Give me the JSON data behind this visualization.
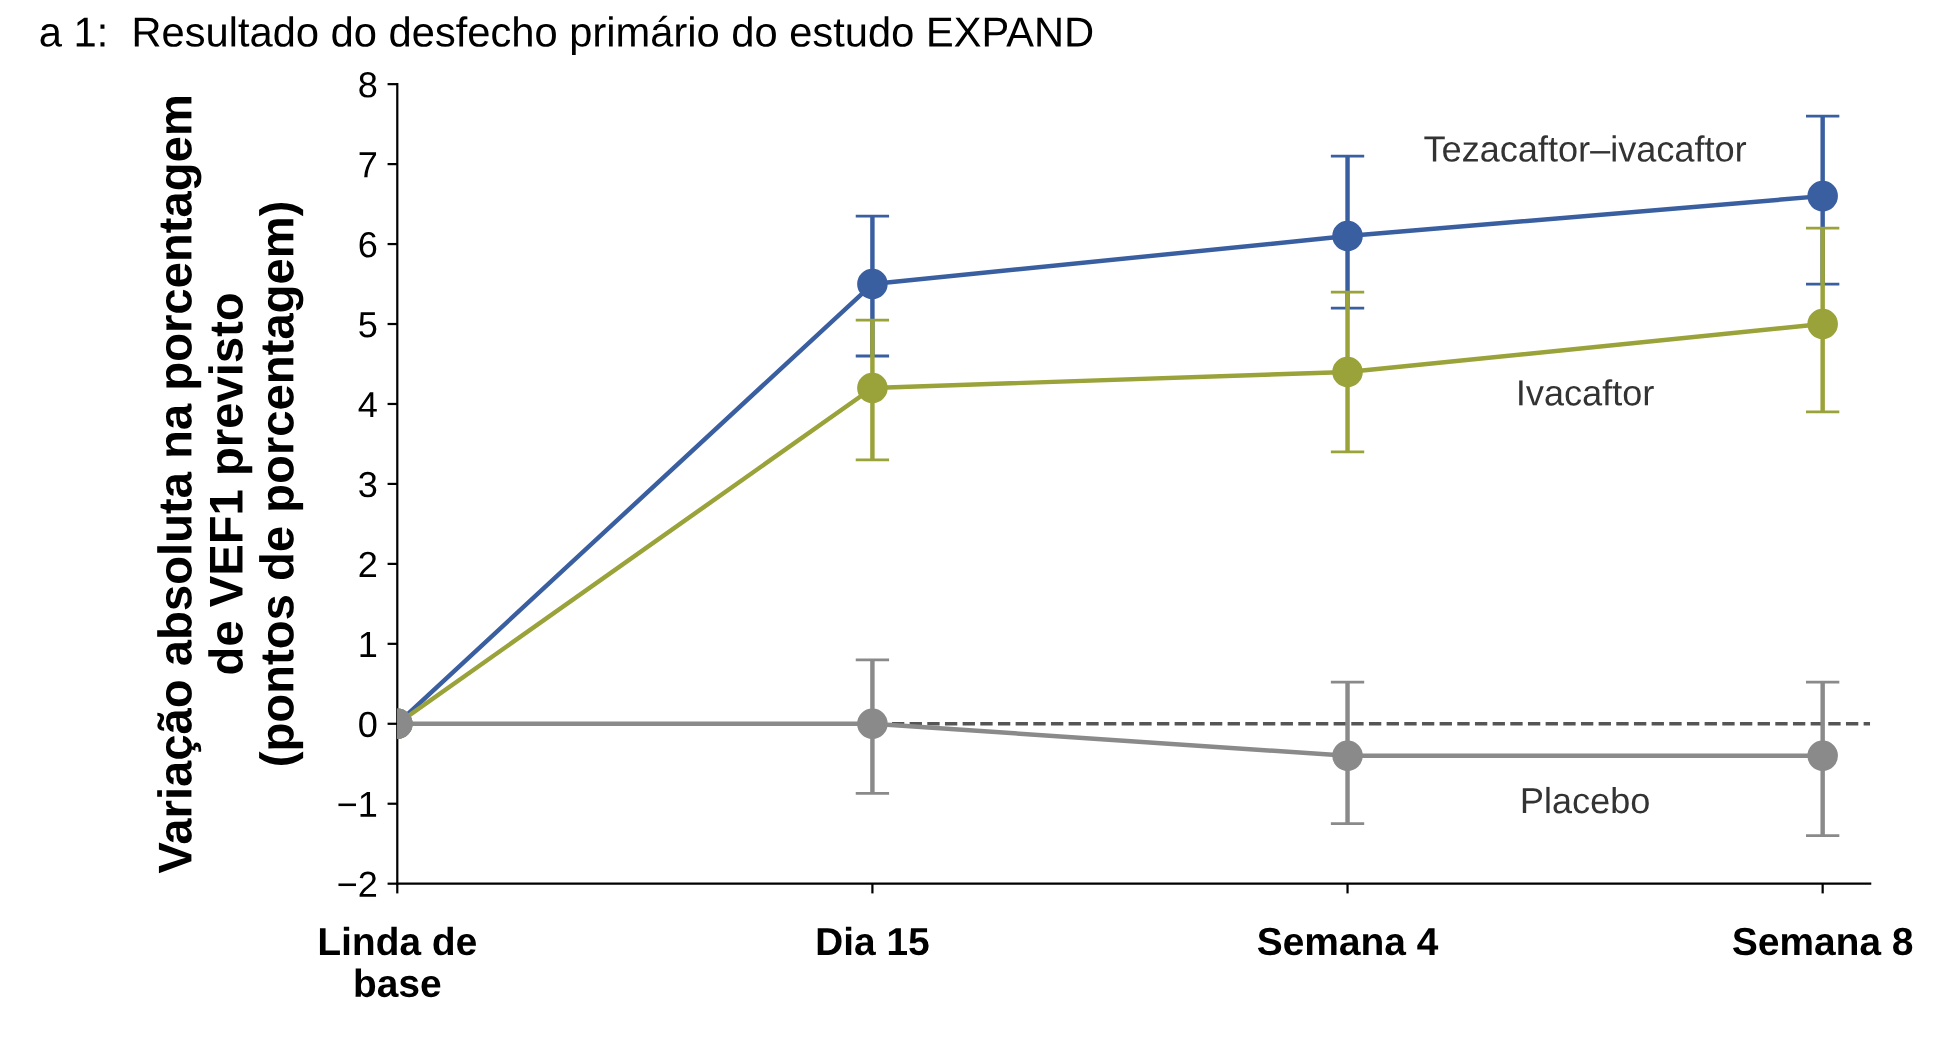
{
  "chart_data": {
    "type": "line",
    "title": "a 1:  Resultado do desfecho primário do estudo EXPAND",
    "ylabel": "Variação absoluta na porcentagem\nde VEF1 previsto\n(pontos de porcentagem)",
    "categories": [
      "Linda de\nbase",
      "Dia 15",
      "Semana 4",
      "Semana 8"
    ],
    "ylim": [
      -2,
      8
    ],
    "yticks": [
      -2,
      -1,
      0,
      1,
      2,
      3,
      4,
      5,
      6,
      7,
      8
    ],
    "marker": "circle",
    "line_style": "solid",
    "grid": false,
    "legend": false,
    "series": [
      {
        "name": "Tezacaftor–ivacaftor",
        "color": "#3a5fa0",
        "values": [
          0,
          5.5,
          6.1,
          6.6
        ],
        "errors": [
          null,
          [
            4.6,
            6.35
          ],
          [
            5.2,
            7.1
          ],
          [
            5.5,
            7.6
          ]
        ]
      },
      {
        "name": "Ivacaftor",
        "color": "#9aa23a",
        "values": [
          0,
          4.2,
          4.4,
          5.0
        ],
        "errors": [
          null,
          [
            3.3,
            5.05
          ],
          [
            3.4,
            5.4
          ],
          [
            3.9,
            6.2
          ]
        ]
      },
      {
        "name": "Placebo",
        "color": "#8a8a8a",
        "values": [
          0,
          0,
          -0.4,
          -0.4
        ],
        "errors": [
          null,
          [
            -0.87,
            0.8
          ],
          [
            -1.25,
            0.52
          ],
          [
            -1.4,
            0.52
          ]
        ]
      }
    ],
    "ref_lines": [
      {
        "axis": "y",
        "value": 0,
        "label": null,
        "color": "#555555",
        "line_style": "dashed"
      }
    ]
  }
}
